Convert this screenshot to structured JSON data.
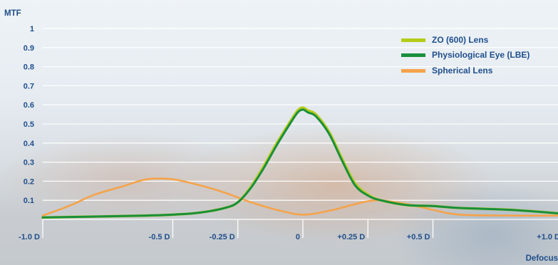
{
  "chart_data": {
    "type": "line",
    "ylabel": "MTF",
    "xlabel": "Defocus",
    "xlim": [
      -1.0,
      1.0
    ],
    "ylim": [
      0,
      1
    ],
    "y_ticks": [
      0.1,
      0.2,
      0.3,
      0.4,
      0.5,
      0.6,
      0.7,
      0.8,
      0.9,
      1
    ],
    "y_tick_labels": [
      "0.1",
      "0.2",
      "0.3",
      "0.4",
      "0.5",
      "0.6",
      "0.7",
      "0.8",
      "0.9",
      "1"
    ],
    "x_ticks": [
      -1.0,
      -0.5,
      -0.25,
      0,
      0.25,
      0.5,
      1.0
    ],
    "x_tick_labels": [
      "-1.0 D",
      "-0.5 D",
      "-0.25 D",
      "0",
      "+0.25 D",
      "+0.5 D",
      "+1.0 D"
    ],
    "grid": true,
    "legend_position": "top-right",
    "series": [
      {
        "name": "ZO (600) Lens",
        "color": "#b5cc18",
        "x": [
          -1.0,
          -0.8,
          -0.6,
          -0.5,
          -0.4,
          -0.3,
          -0.25,
          -0.2,
          -0.15,
          -0.1,
          -0.05,
          -0.02,
          0,
          0.02,
          0.05,
          0.1,
          0.15,
          0.2,
          0.25,
          0.3,
          0.4,
          0.5,
          0.6,
          0.8,
          1.0
        ],
        "y": [
          0.01,
          0.015,
          0.02,
          0.025,
          0.035,
          0.06,
          0.09,
          0.17,
          0.28,
          0.4,
          0.51,
          0.57,
          0.585,
          0.57,
          0.55,
          0.46,
          0.32,
          0.19,
          0.13,
          0.1,
          0.075,
          0.07,
          0.06,
          0.05,
          0.03
        ]
      },
      {
        "name": "Physiological Eye (LBE)",
        "color": "#1a8f3c",
        "x": [
          -1.0,
          -0.8,
          -0.6,
          -0.5,
          -0.4,
          -0.3,
          -0.25,
          -0.2,
          -0.15,
          -0.1,
          -0.05,
          -0.02,
          0,
          0.02,
          0.05,
          0.1,
          0.15,
          0.2,
          0.25,
          0.3,
          0.4,
          0.5,
          0.6,
          0.8,
          1.0
        ],
        "y": [
          0.01,
          0.015,
          0.02,
          0.025,
          0.035,
          0.06,
          0.09,
          0.165,
          0.27,
          0.39,
          0.5,
          0.56,
          0.575,
          0.56,
          0.54,
          0.45,
          0.31,
          0.18,
          0.125,
          0.1,
          0.075,
          0.07,
          0.06,
          0.05,
          0.03
        ]
      },
      {
        "name": "Spherical Lens",
        "color": "#f5a34a",
        "x": [
          -1.0,
          -0.9,
          -0.8,
          -0.7,
          -0.6,
          -0.5,
          -0.4,
          -0.3,
          -0.2,
          -0.1,
          0,
          0.1,
          0.2,
          0.25,
          0.3,
          0.4,
          0.5,
          0.6,
          0.8,
          1.0
        ],
        "y": [
          0.02,
          0.07,
          0.13,
          0.17,
          0.21,
          0.21,
          0.18,
          0.14,
          0.09,
          0.05,
          0.025,
          0.045,
          0.08,
          0.095,
          0.1,
          0.08,
          0.05,
          0.025,
          0.02,
          0.02
        ]
      }
    ]
  }
}
